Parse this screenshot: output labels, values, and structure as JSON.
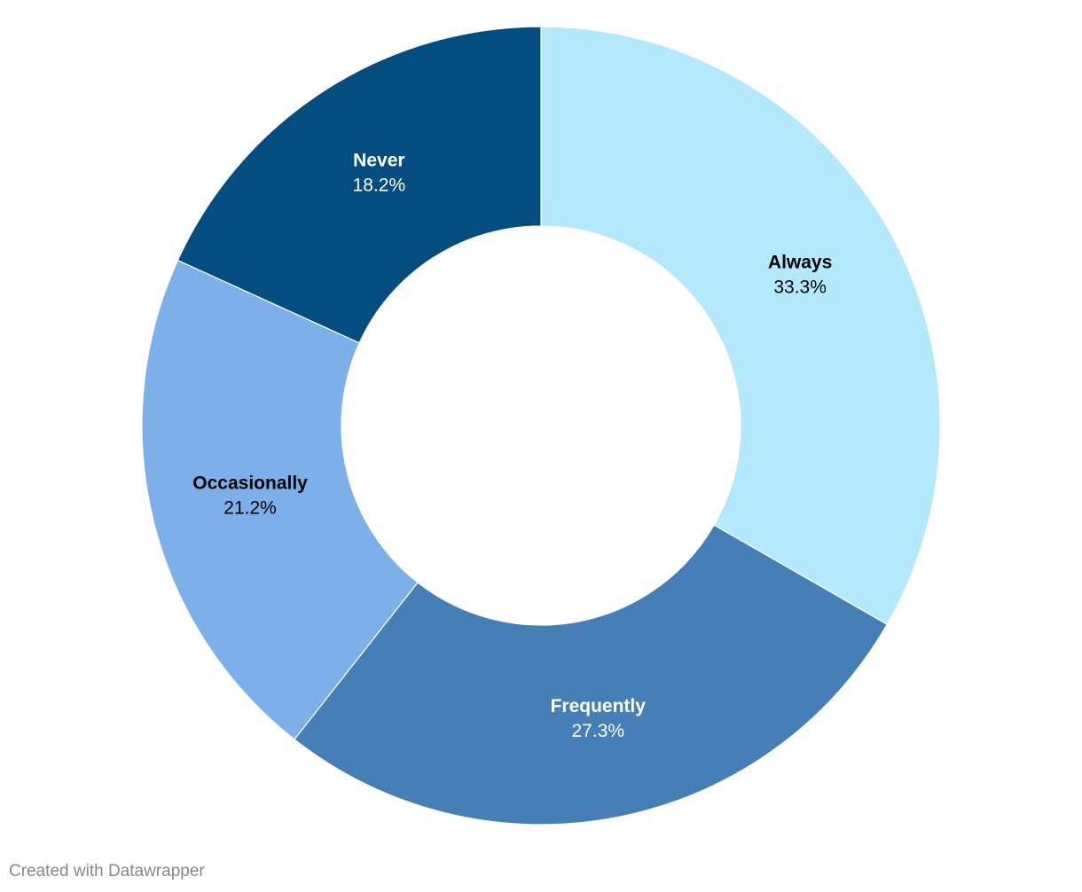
{
  "chart_data": {
    "type": "donut",
    "categories": [
      "Always",
      "Frequently",
      "Occasionally",
      "Never"
    ],
    "values": [
      33.3,
      27.3,
      21.2,
      18.2
    ],
    "value_labels": [
      "33.3%",
      "27.3%",
      "21.2%",
      "18.2%"
    ],
    "colors": [
      "#b3e8fd",
      "#467fb5",
      "#7db0e8",
      "#034e7e"
    ],
    "credit": "Created with Datawrapper"
  }
}
